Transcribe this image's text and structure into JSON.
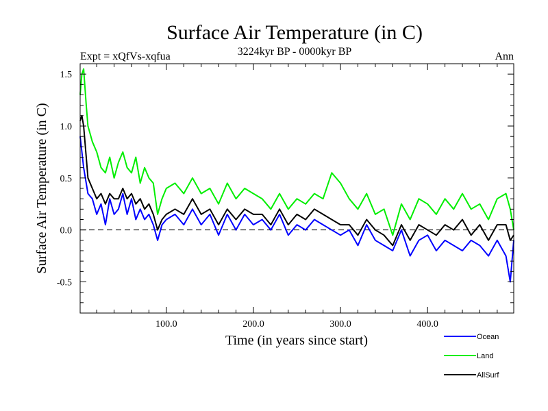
{
  "chart_data": {
    "type": "line",
    "title": "Surface Air Temperature (in C)",
    "subtitle": "3224kyr BP - 0000kyr BP",
    "left_label": "Expt = xQfVs-xqfua",
    "right_label": "Ann",
    "xlabel": "Time (in years since start)",
    "ylabel": "Surface Air Temperature (in C)",
    "xlim": [
      1,
      499
    ],
    "ylim": [
      -0.8,
      1.6
    ],
    "x_ticks": [
      {
        "value": 100,
        "label": "100.0"
      },
      {
        "value": 200,
        "label": "200.0"
      },
      {
        "value": 300,
        "label": "300.0"
      },
      {
        "value": 400,
        "label": "400.0"
      }
    ],
    "y_ticks": [
      {
        "value": -0.5,
        "label": "-0.5"
      },
      {
        "value": 0.0,
        "label": "0.0"
      },
      {
        "value": 0.5,
        "label": "0.5"
      },
      {
        "value": 1.0,
        "label": "1.0"
      },
      {
        "value": 1.5,
        "label": "1.5"
      }
    ],
    "reference_line": 0.0,
    "legend_position": "bottom-right",
    "series": [
      {
        "name": "Ocean",
        "color": "#0000ff",
        "x": [
          1,
          5,
          10,
          15,
          20,
          25,
          30,
          35,
          40,
          45,
          50,
          55,
          60,
          65,
          70,
          75,
          80,
          85,
          90,
          95,
          100,
          110,
          120,
          130,
          140,
          150,
          160,
          170,
          180,
          190,
          200,
          210,
          220,
          230,
          240,
          250,
          260,
          270,
          280,
          290,
          300,
          310,
          320,
          330,
          340,
          350,
          360,
          370,
          380,
          390,
          400,
          410,
          420,
          430,
          440,
          450,
          460,
          470,
          480,
          490,
          495,
          499
        ],
        "values": [
          0.9,
          0.6,
          0.35,
          0.3,
          0.15,
          0.25,
          0.05,
          0.3,
          0.15,
          0.2,
          0.35,
          0.15,
          0.3,
          0.1,
          0.2,
          0.1,
          0.15,
          0.05,
          -0.1,
          0.05,
          0.1,
          0.15,
          0.05,
          0.2,
          0.05,
          0.15,
          -0.05,
          0.15,
          0.0,
          0.15,
          0.05,
          0.1,
          0.0,
          0.15,
          -0.05,
          0.05,
          0.0,
          0.1,
          0.05,
          0.0,
          -0.05,
          0.0,
          -0.15,
          0.05,
          -0.1,
          -0.15,
          -0.2,
          0.0,
          -0.25,
          -0.1,
          -0.05,
          -0.2,
          -0.1,
          -0.15,
          -0.2,
          -0.1,
          -0.15,
          -0.25,
          -0.1,
          -0.25,
          -0.5,
          -0.1
        ]
      },
      {
        "name": "Land",
        "color": "#00ee00",
        "x": [
          1,
          3,
          5,
          8,
          10,
          15,
          20,
          25,
          30,
          35,
          40,
          45,
          50,
          55,
          60,
          65,
          70,
          75,
          80,
          85,
          90,
          95,
          100,
          110,
          120,
          130,
          140,
          150,
          160,
          170,
          180,
          190,
          200,
          210,
          220,
          230,
          240,
          250,
          260,
          270,
          280,
          290,
          300,
          310,
          320,
          330,
          340,
          350,
          360,
          370,
          380,
          390,
          400,
          410,
          420,
          430,
          440,
          450,
          460,
          470,
          480,
          490,
          495,
          499
        ],
        "values": [
          1.3,
          1.5,
          1.55,
          1.2,
          1.0,
          0.85,
          0.75,
          0.6,
          0.55,
          0.7,
          0.5,
          0.65,
          0.75,
          0.6,
          0.55,
          0.7,
          0.45,
          0.6,
          0.5,
          0.45,
          0.15,
          0.3,
          0.4,
          0.45,
          0.35,
          0.5,
          0.35,
          0.4,
          0.25,
          0.45,
          0.3,
          0.4,
          0.35,
          0.3,
          0.2,
          0.35,
          0.2,
          0.3,
          0.25,
          0.35,
          0.3,
          0.55,
          0.45,
          0.3,
          0.2,
          0.35,
          0.15,
          0.2,
          -0.05,
          0.25,
          0.1,
          0.3,
          0.25,
          0.15,
          0.3,
          0.2,
          0.35,
          0.2,
          0.25,
          0.1,
          0.3,
          0.35,
          0.2,
          0.0
        ]
      },
      {
        "name": "AllSurf",
        "color": "#000000",
        "x": [
          1,
          3,
          5,
          8,
          10,
          15,
          20,
          25,
          30,
          35,
          40,
          45,
          50,
          55,
          60,
          65,
          70,
          75,
          80,
          85,
          90,
          95,
          100,
          110,
          120,
          130,
          140,
          150,
          160,
          170,
          180,
          190,
          200,
          210,
          220,
          230,
          240,
          250,
          260,
          270,
          280,
          290,
          300,
          310,
          320,
          330,
          340,
          350,
          360,
          370,
          380,
          390,
          400,
          410,
          420,
          430,
          440,
          450,
          460,
          470,
          480,
          490,
          495,
          499
        ],
        "values": [
          1.05,
          1.1,
          1.0,
          0.7,
          0.5,
          0.4,
          0.3,
          0.35,
          0.25,
          0.35,
          0.3,
          0.3,
          0.4,
          0.3,
          0.35,
          0.25,
          0.3,
          0.2,
          0.25,
          0.15,
          0.0,
          0.1,
          0.15,
          0.2,
          0.15,
          0.3,
          0.15,
          0.2,
          0.05,
          0.2,
          0.1,
          0.2,
          0.15,
          0.15,
          0.05,
          0.2,
          0.05,
          0.15,
          0.1,
          0.2,
          0.15,
          0.1,
          0.05,
          0.05,
          -0.05,
          0.1,
          0.0,
          -0.05,
          -0.15,
          0.05,
          -0.1,
          0.05,
          0.0,
          -0.05,
          0.05,
          0.0,
          0.1,
          -0.05,
          0.05,
          -0.1,
          0.05,
          0.05,
          -0.1,
          -0.05
        ]
      }
    ]
  }
}
